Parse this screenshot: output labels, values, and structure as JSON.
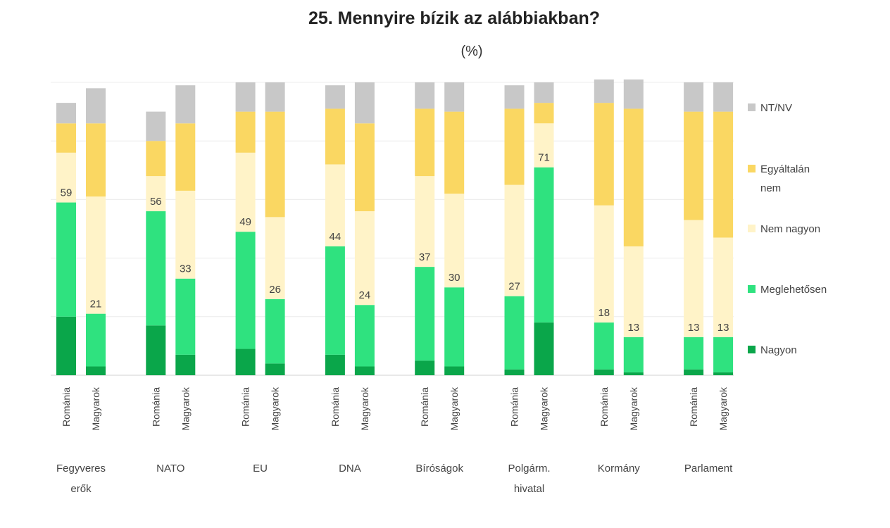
{
  "title": "25. Mennyire bízik az alábbiakban?",
  "subtitle": "(%)",
  "colors": {
    "Nagyon": "#0aa64a",
    "Meglehetősen": "#2fe27f",
    "Nem nagyon": "#fff3c8",
    "Egyáltalán nem": "#fad762",
    "NT/NV": "#c8c8c8"
  },
  "chart_data": {
    "type": "bar",
    "stacked": true,
    "ylim": [
      0,
      100
    ],
    "grid": true,
    "legend_position": "right",
    "stack_order": [
      "Nagyon",
      "Meglehetősen",
      "Nem nagyon",
      "Egyáltalán nem",
      "NT/NV"
    ],
    "legend": [
      "NT/NV",
      "Egyáltalán nem",
      "Nem nagyon",
      "Meglehetősen",
      "Nagyon"
    ],
    "sub_categories": [
      "Románia",
      "Magyarok"
    ],
    "groups": [
      {
        "label": "Fegyveres erők",
        "bars": [
          {
            "country": "Románia",
            "Nagyon": 20,
            "Meglehetősen": 39,
            "Nem nagyon": 17,
            "Egyáltalán nem": 10,
            "NT/NV": 7,
            "total_label": "59"
          },
          {
            "country": "Magyarok",
            "Nagyon": 3,
            "Meglehetősen": 18,
            "Nem nagyon": 40,
            "Egyáltalán nem": 25,
            "NT/NV": 12,
            "total_label": "21"
          }
        ]
      },
      {
        "label": "NATO",
        "bars": [
          {
            "country": "Románia",
            "Nagyon": 17,
            "Meglehetősen": 39,
            "Nem nagyon": 12,
            "Egyáltalán nem": 12,
            "NT/NV": 10,
            "total_label": "56"
          },
          {
            "country": "Magyarok",
            "Nagyon": 7,
            "Meglehetősen": 26,
            "Nem nagyon": 30,
            "Egyáltalán nem": 23,
            "NT/NV": 13,
            "total_label": "33"
          }
        ]
      },
      {
        "label": "EU",
        "bars": [
          {
            "country": "Románia",
            "Nagyon": 9,
            "Meglehetősen": 40,
            "Nem nagyon": 27,
            "Egyáltalán nem": 14,
            "NT/NV": 10,
            "total_label": "49"
          },
          {
            "country": "Magyarok",
            "Nagyon": 4,
            "Meglehetősen": 22,
            "Nem nagyon": 28,
            "Egyáltalán nem": 36,
            "NT/NV": 10,
            "total_label": "26"
          }
        ]
      },
      {
        "label": "DNA",
        "bars": [
          {
            "country": "Románia",
            "Nagyon": 7,
            "Meglehetősen": 37,
            "Nem nagyon": 28,
            "Egyáltalán nem": 19,
            "NT/NV": 8,
            "total_label": "44"
          },
          {
            "country": "Magyarok",
            "Nagyon": 3,
            "Meglehetősen": 21,
            "Nem nagyon": 32,
            "Egyáltalán nem": 30,
            "NT/NV": 14,
            "total_label": "24"
          }
        ]
      },
      {
        "label": "Bíróságok",
        "bars": [
          {
            "country": "Románia",
            "Nagyon": 5,
            "Meglehetősen": 32,
            "Nem nagyon": 31,
            "Egyáltalán nem": 23,
            "NT/NV": 9,
            "total_label": "37"
          },
          {
            "country": "Magyarok",
            "Nagyon": 3,
            "Meglehetősen": 27,
            "Nem nagyon": 32,
            "Egyáltalán nem": 28,
            "NT/NV": 10,
            "total_label": "30"
          }
        ]
      },
      {
        "label": "Polgárm. hivatal",
        "bars": [
          {
            "country": "Románia",
            "Nagyon": 2,
            "Meglehetősen": 25,
            "Nem nagyon": 38,
            "Egyáltalán nem": 26,
            "NT/NV": 8,
            "total_label": "27"
          },
          {
            "country": "Magyarok",
            "Nagyon": 18,
            "Meglehetősen": 53,
            "Nem nagyon": 15,
            "Egyáltalán nem": 7,
            "NT/NV": 7,
            "total_label": "71"
          }
        ]
      },
      {
        "label": "Kormány",
        "bars": [
          {
            "country": "Románia",
            "Nagyon": 2,
            "Meglehetősen": 16,
            "Nem nagyon": 40,
            "Egyáltalán nem": 35,
            "NT/NV": 8,
            "total_label": "18"
          },
          {
            "country": "Magyarok",
            "Nagyon": 1,
            "Meglehetősen": 12,
            "Nem nagyon": 31,
            "Egyáltalán nem": 47,
            "NT/NV": 10,
            "total_label": "13"
          }
        ]
      },
      {
        "label": "Parlament",
        "bars": [
          {
            "country": "Románia",
            "Nagyon": 2,
            "Meglehetősen": 11,
            "Nem nagyon": 40,
            "Egyáltalán nem": 37,
            "NT/NV": 10,
            "total_label": "13"
          },
          {
            "country": "Magyarok",
            "Nagyon": 1,
            "Meglehetősen": 12,
            "Nem nagyon": 34,
            "Egyáltalán nem": 43,
            "NT/NV": 10,
            "total_label": "13"
          }
        ]
      }
    ]
  }
}
